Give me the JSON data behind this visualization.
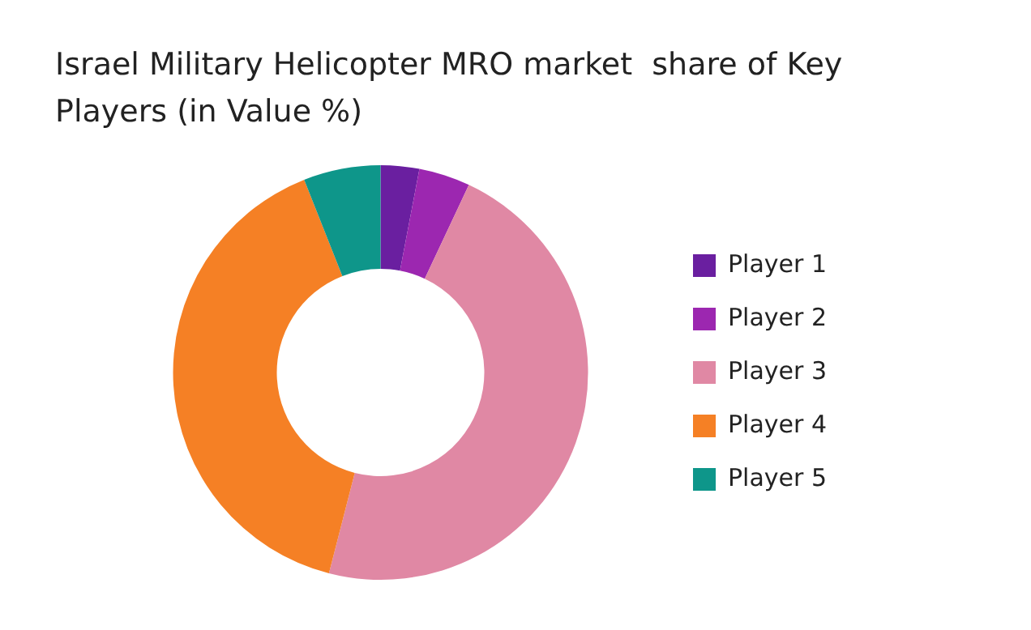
{
  "chart_data": {
    "type": "donut",
    "title": "Israel Military Helicopter MRO market  share of Key Players (in Value %)",
    "categories": [
      "Player 1",
      "Player 2",
      "Player 3",
      "Player 4",
      "Player 5"
    ],
    "values": [
      3,
      4,
      47,
      40,
      6
    ],
    "colors": [
      "#6a1fa0",
      "#9c27b0",
      "#e088a4",
      "#f58025",
      "#0e968a"
    ],
    "legend": "right"
  }
}
